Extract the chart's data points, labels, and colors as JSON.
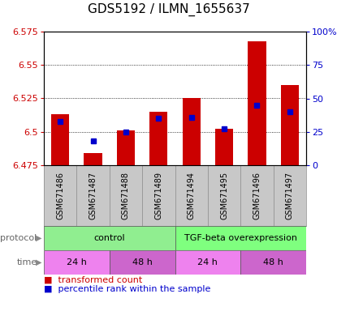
{
  "title": "GDS5192 / ILMN_1655637",
  "samples": [
    "GSM671486",
    "GSM671487",
    "GSM671488",
    "GSM671489",
    "GSM671494",
    "GSM671495",
    "GSM671496",
    "GSM671497"
  ],
  "red_values": [
    6.513,
    6.484,
    6.501,
    6.515,
    6.525,
    6.502,
    6.568,
    6.535
  ],
  "blue_values_pct": [
    33,
    18,
    25,
    35,
    36,
    27,
    45,
    40
  ],
  "ylim": [
    6.475,
    6.575
  ],
  "yticks_left": [
    6.475,
    6.5,
    6.525,
    6.55,
    6.575
  ],
  "yticks_right_pct": [
    0,
    25,
    50,
    75,
    100
  ],
  "protocol_groups": [
    {
      "label": "control",
      "start": 0,
      "end": 4,
      "color": "#90EE90"
    },
    {
      "label": "TGF-beta overexpression",
      "start": 4,
      "end": 8,
      "color": "#7FFF7F"
    }
  ],
  "time_groups": [
    {
      "label": "24 h",
      "start": 0,
      "end": 2,
      "color": "#EE82EE"
    },
    {
      "label": "48 h",
      "start": 2,
      "end": 4,
      "color": "#CC66CC"
    },
    {
      "label": "24 h",
      "start": 4,
      "end": 6,
      "color": "#EE82EE"
    },
    {
      "label": "48 h",
      "start": 6,
      "end": 8,
      "color": "#CC66CC"
    }
  ],
  "bar_color": "#CC0000",
  "dot_color": "#0000CC",
  "bar_bottom": 6.475,
  "bar_width": 0.55,
  "bg_color": "#FFFFFF",
  "plot_bg": "#FFFFFF",
  "grid_color": "black",
  "left_label_color": "#CC0000",
  "right_label_color": "#0000CC",
  "title_fontsize": 11,
  "tick_fontsize": 8,
  "label_fontsize": 7,
  "legend_fontsize": 8,
  "sample_bg": "#C8C8C8",
  "sample_edge": "#888888"
}
